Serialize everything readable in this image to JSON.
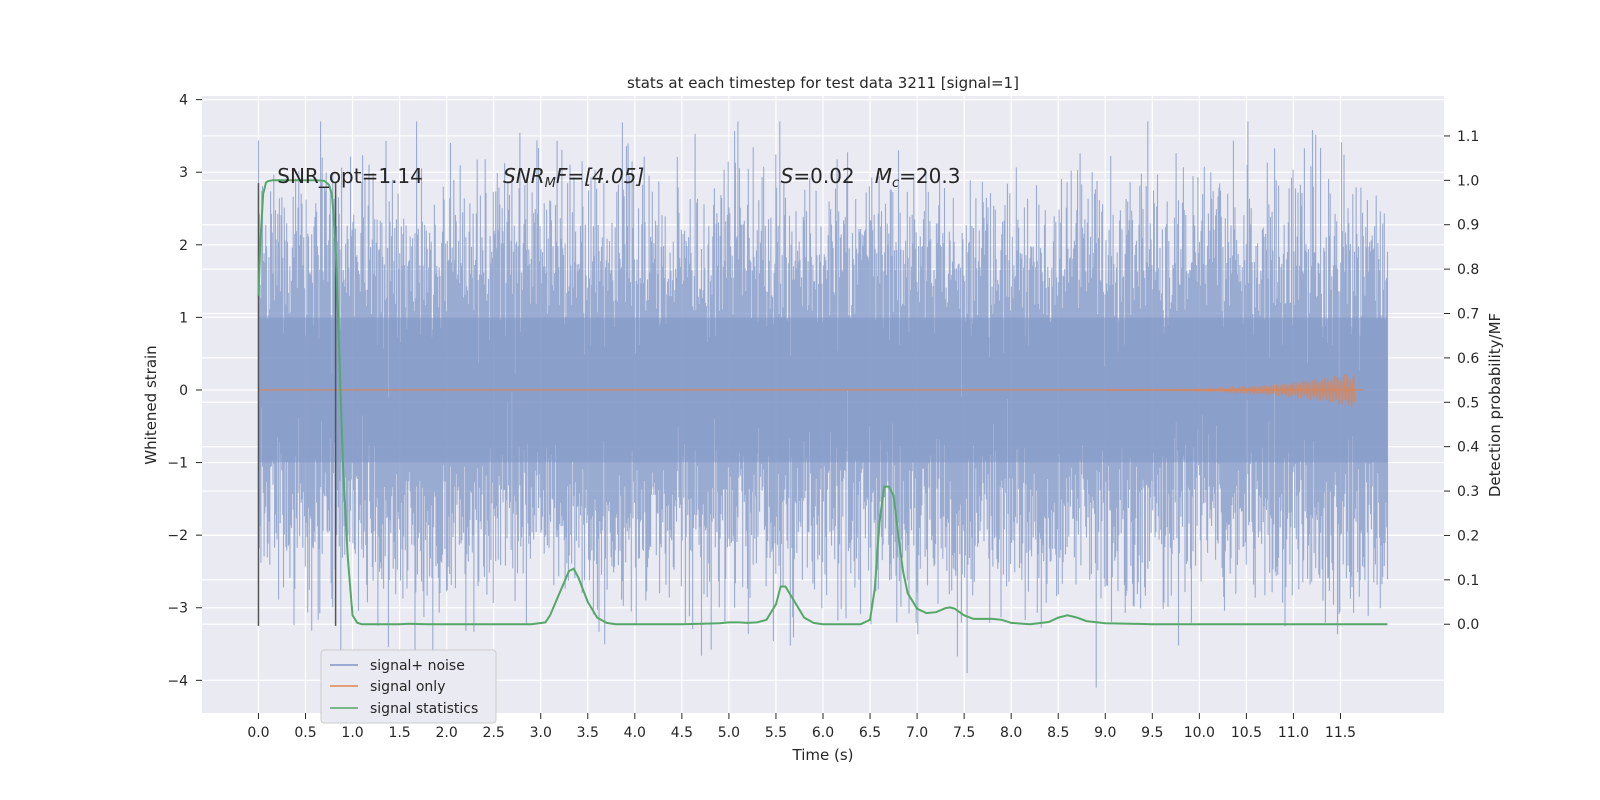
{
  "chart_data": {
    "type": "line",
    "title": "stats at each timestep for test data 3211 [signal=1]",
    "xlabel": "Time (s)",
    "ylabel": "Whitened strain",
    "y2label": "Detection probability/MF",
    "xlim": [
      -0.6,
      12.6
    ],
    "ylim": [
      -4.45,
      4.05
    ],
    "y2lim": [
      -0.2,
      1.19
    ],
    "x_ticks": [
      0.0,
      0.5,
      1.0,
      1.5,
      2.0,
      2.5,
      3.0,
      3.5,
      4.0,
      4.5,
      5.0,
      5.5,
      6.0,
      6.5,
      7.0,
      7.5,
      8.0,
      8.5,
      9.0,
      9.5,
      10.0,
      10.5,
      11.0,
      11.5
    ],
    "x_tick_labels": [
      "0.0",
      "0.5",
      "1.0",
      "1.5",
      "2.0",
      "2.5",
      "3.0",
      "3.5",
      "4.0",
      "4.5",
      "5.0",
      "5.5",
      "6.0",
      "6.5",
      "7.0",
      "7.5",
      "8.0",
      "8.5",
      "9.0",
      "9.5",
      "10.0",
      "10.5",
      "11.0",
      "11.5"
    ],
    "y_ticks": [
      4,
      3,
      2,
      1,
      0,
      -1,
      -2,
      -3,
      -4
    ],
    "y_tick_labels": [
      "4",
      "3",
      "2",
      "1",
      "0",
      "−1",
      "−2",
      "−3",
      "−4"
    ],
    "y2_ticks": [
      1.1,
      1.0,
      0.9,
      0.8,
      0.7,
      0.6,
      0.5,
      0.4,
      0.3,
      0.2,
      0.1,
      0.0
    ],
    "y2_tick_labels": [
      "1.1",
      "1.0",
      "0.9",
      "0.8",
      "0.7",
      "0.6",
      "0.5",
      "0.4",
      "0.3",
      "0.2",
      "0.1",
      "0.0"
    ],
    "grid": true,
    "legend_position": "lower-left",
    "series": [
      {
        "name": "signal+ noise",
        "color": "#7f95c6",
        "axis": "left",
        "kind": "noise-band",
        "x_range": [
          0.0,
          12.0
        ],
        "y_range": [
          -4.1,
          3.7
        ]
      },
      {
        "name": "signal only",
        "color": "#dd8452",
        "axis": "left",
        "kind": "chirp",
        "x_range": [
          0.0,
          11.75
        ],
        "peak_time": 11.65,
        "peak_amplitude": 0.25
      },
      {
        "name": "signal statistics",
        "color": "#55a868",
        "axis": "right",
        "x": [
          0.0,
          0.02,
          0.05,
          0.08,
          0.1,
          0.15,
          0.2,
          0.3,
          0.4,
          0.5,
          0.6,
          0.7,
          0.75,
          0.78,
          0.8,
          0.83,
          0.86,
          0.9,
          0.95,
          1.0,
          1.05,
          1.1,
          1.3,
          1.5,
          1.6,
          1.8,
          2.0,
          2.5,
          2.9,
          3.05,
          3.1,
          3.2,
          3.3,
          3.35,
          3.4,
          3.5,
          3.6,
          3.7,
          3.8,
          4.0,
          4.5,
          4.9,
          5.0,
          5.1,
          5.2,
          5.3,
          5.4,
          5.5,
          5.55,
          5.6,
          5.7,
          5.8,
          5.9,
          6.0,
          6.2,
          6.4,
          6.5,
          6.55,
          6.6,
          6.65,
          6.7,
          6.75,
          6.8,
          6.85,
          6.9,
          7.0,
          7.1,
          7.2,
          7.3,
          7.35,
          7.4,
          7.5,
          7.6,
          7.8,
          7.9,
          8.0,
          8.2,
          8.4,
          8.5,
          8.6,
          8.7,
          8.8,
          9.0,
          9.5,
          10.0,
          11.0,
          12.0
        ],
        "y": [
          0.74,
          0.86,
          0.97,
          0.995,
          0.998,
          1.0,
          1.0,
          1.0,
          1.0,
          1.0,
          1.0,
          0.999,
          0.99,
          0.97,
          0.92,
          0.8,
          0.6,
          0.35,
          0.15,
          0.02,
          0.003,
          0.0,
          0.0,
          0.0,
          0.001,
          0.0,
          0.0,
          0.0,
          0.0,
          0.004,
          0.02,
          0.07,
          0.12,
          0.125,
          0.105,
          0.05,
          0.015,
          0.003,
          0.0,
          0.0,
          0.0,
          0.002,
          0.004,
          0.004,
          0.003,
          0.004,
          0.01,
          0.045,
          0.085,
          0.085,
          0.05,
          0.015,
          0.003,
          0.0,
          0.0,
          0.0,
          0.01,
          0.08,
          0.23,
          0.31,
          0.31,
          0.29,
          0.2,
          0.12,
          0.07,
          0.035,
          0.025,
          0.027,
          0.036,
          0.038,
          0.035,
          0.02,
          0.012,
          0.012,
          0.01,
          0.003,
          0.0,
          0.005,
          0.015,
          0.02,
          0.015,
          0.007,
          0.002,
          0.0,
          0.0,
          0.0,
          0.0
        ]
      }
    ],
    "vertical_markers": {
      "color": "#555555",
      "x": [
        0.0,
        0.82
      ],
      "y_range": [
        -3.25,
        2.85
      ]
    },
    "annotations": [
      {
        "text": "SNR_opt=1.14",
        "x": 0.2,
        "y": 2.95,
        "italic": false
      },
      {
        "text_main": "SNR",
        "text_sub": "M",
        "text_rest": "F=[4.05]",
        "x": 2.6,
        "y": 2.95,
        "italic": true
      },
      {
        "text": "S=0.02",
        "x": 5.55,
        "y": 2.95
      },
      {
        "text_main": "M",
        "text_sub": "c",
        "text_rest": "=20.3",
        "x": 6.55,
        "y": 2.95
      }
    ]
  },
  "legend": {
    "items": [
      {
        "label": "signal+ noise",
        "color": "#7f95c6"
      },
      {
        "label": "signal only",
        "color": "#dd8452"
      },
      {
        "label": "signal statistics",
        "color": "#55a868"
      }
    ]
  },
  "colors": {
    "plot_background": "#eaeaf2",
    "grid": "#ffffff",
    "text": "#262626"
  }
}
